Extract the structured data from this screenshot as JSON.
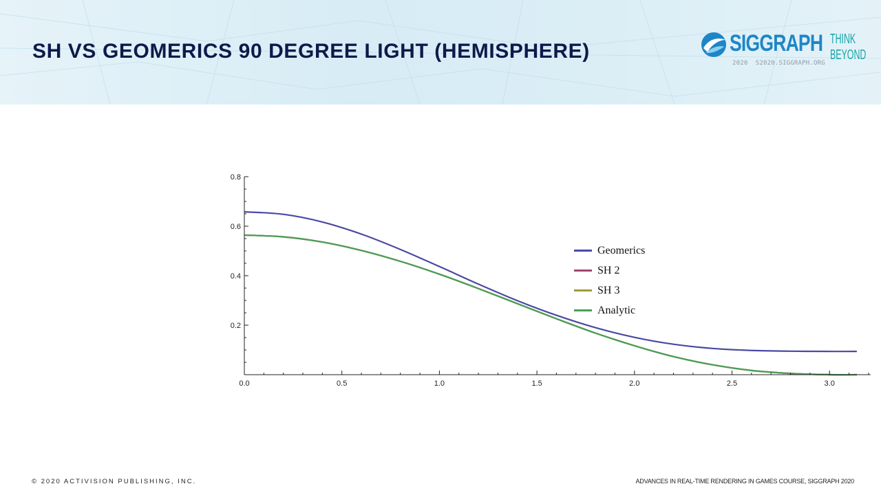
{
  "slide": {
    "title": "SH VS GEOMERICS 90 DEGREE LIGHT (HEMISPHERE)"
  },
  "logo": {
    "name": "SIGGRAPH",
    "tagline_line1": "THINK",
    "tagline_line2": "BEYOND",
    "year": "2020",
    "url": "S2020.SIGGRAPH.ORG"
  },
  "footer": {
    "left": "© 2020 ACTIVISION PUBLISHING, INC.",
    "right": "ADVANCES IN REAL-TIME RENDERING IN GAMES COURSE, SIGGRAPH 2020"
  },
  "colors": {
    "title": "#0e1a4a",
    "siggraph_blue": "#1e86c6",
    "think_beyond": "#18a5a8",
    "geomerics": "#4a48a4",
    "sh2": "#a0456e",
    "sh3": "#a39a35",
    "analytic": "#4a9e58"
  },
  "chart_data": {
    "type": "line",
    "title": "",
    "xlabel": "",
    "ylabel": "",
    "xlim": [
      0,
      3.2
    ],
    "ylim": [
      0,
      0.8
    ],
    "x_ticks": [
      "0.0",
      "0.5",
      "1.0",
      "1.5",
      "2.0",
      "2.5",
      "3.0"
    ],
    "x_tick_values": [
      0,
      0.5,
      1.0,
      1.5,
      2.0,
      2.5,
      3.0
    ],
    "y_ticks": [
      "0.2",
      "0.4",
      "0.6",
      "0.8"
    ],
    "y_tick_values": [
      0.2,
      0.4,
      0.6,
      0.8
    ],
    "legend_position": "right",
    "series": [
      {
        "name": "Geomerics",
        "color": "#4a48a4",
        "x": [
          0,
          0.2,
          0.4,
          0.6,
          0.8,
          1.0,
          1.2,
          1.4,
          1.6,
          1.8,
          2.0,
          2.2,
          2.4,
          2.6,
          2.8,
          3.0,
          3.14
        ],
        "y": [
          0.658,
          0.648,
          0.617,
          0.568,
          0.506,
          0.437,
          0.366,
          0.299,
          0.24,
          0.19,
          0.151,
          0.123,
          0.106,
          0.098,
          0.095,
          0.094,
          0.094
        ]
      },
      {
        "name": "SH 2",
        "color": "#a0456e",
        "x": [
          0,
          0.2,
          0.4,
          0.6,
          0.8,
          1.0,
          1.2,
          1.4,
          1.6,
          1.8,
          2.0,
          2.2,
          2.4,
          2.6,
          2.8,
          3.0,
          3.14
        ],
        "y": [
          0.564,
          0.557,
          0.536,
          0.502,
          0.458,
          0.406,
          0.348,
          0.287,
          0.226,
          0.168,
          0.117,
          0.073,
          0.04,
          0.017,
          0.005,
          0.0,
          0.0
        ]
      },
      {
        "name": "SH 3",
        "color": "#a39a35",
        "x": [
          0,
          0.2,
          0.4,
          0.6,
          0.8,
          1.0,
          1.2,
          1.4,
          1.6,
          1.8,
          2.0,
          2.2,
          2.4,
          2.6,
          2.8,
          3.0,
          3.14
        ],
        "y": [
          0.564,
          0.557,
          0.536,
          0.502,
          0.458,
          0.406,
          0.348,
          0.287,
          0.226,
          0.168,
          0.117,
          0.073,
          0.04,
          0.017,
          0.005,
          0.0,
          0.0
        ]
      },
      {
        "name": "Analytic",
        "color": "#4a9e58",
        "x": [
          0,
          0.2,
          0.4,
          0.6,
          0.8,
          1.0,
          1.2,
          1.4,
          1.6,
          1.8,
          2.0,
          2.2,
          2.4,
          2.6,
          2.8,
          3.0,
          3.14
        ],
        "y": [
          0.564,
          0.557,
          0.536,
          0.502,
          0.458,
          0.406,
          0.348,
          0.287,
          0.226,
          0.168,
          0.117,
          0.073,
          0.04,
          0.017,
          0.005,
          0.0,
          0.0
        ]
      }
    ]
  }
}
